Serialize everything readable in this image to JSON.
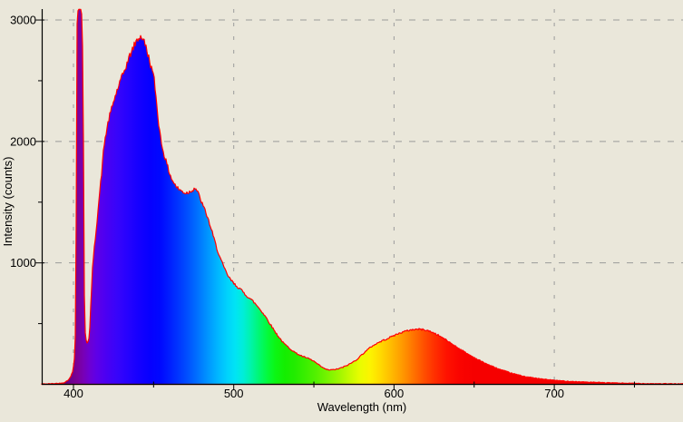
{
  "chart": {
    "bg_color": "#eae7da",
    "grid_color": "#9b9b9b",
    "axis_color": "#000000",
    "outline_color": "#ff0000"
  },
  "chart_data": {
    "type": "area",
    "xlabel": "Wavelength (nm)",
    "ylabel": "Intensity (counts)",
    "xlim": [
      380.2,
      780.3
    ],
    "ylim": [
      0,
      3090
    ],
    "grid": true,
    "x_major_ticks": [
      400,
      500,
      600,
      700
    ],
    "x_minor_ticks": [
      450,
      550,
      650,
      750
    ],
    "y_major_ticks": [
      1000,
      2000,
      3000
    ],
    "y_minor_ticks": [
      500,
      1500,
      2500
    ],
    "features": {
      "laser_line_nm": 404,
      "laser_line_counts": 3090,
      "main_peak_nm": 442,
      "main_peak_counts": 2870,
      "shoulder_nm": 476,
      "shoulder_counts": 1620,
      "valley_nm": 560,
      "valley_counts": 118,
      "secondary_peak_nm": 615,
      "secondary_peak_counts": 455
    },
    "points": [
      [
        380,
        3
      ],
      [
        384,
        4
      ],
      [
        388,
        6
      ],
      [
        392,
        9
      ],
      [
        394,
        14
      ],
      [
        396,
        28
      ],
      [
        398,
        55
      ],
      [
        399.5,
        105
      ],
      [
        400.5,
        190
      ],
      [
        401.2,
        420
      ],
      [
        401.8,
        1500
      ],
      [
        402.3,
        3060
      ],
      [
        403,
        3085
      ],
      [
        404,
        3090
      ],
      [
        405,
        3088
      ],
      [
        405.6,
        2840
      ],
      [
        406.1,
        2400
      ],
      [
        406.5,
        1100
      ],
      [
        407,
        500
      ],
      [
        407.6,
        380
      ],
      [
        408.5,
        345
      ],
      [
        409.5,
        355
      ],
      [
        410.3,
        480
      ],
      [
        411,
        720
      ],
      [
        412,
        980
      ],
      [
        413,
        1120
      ],
      [
        414.5,
        1320
      ],
      [
        416,
        1530
      ],
      [
        417.5,
        1730
      ],
      [
        419,
        1960
      ],
      [
        420.5,
        2080
      ],
      [
        422,
        2180
      ],
      [
        424,
        2280
      ],
      [
        426,
        2370
      ],
      [
        428,
        2450
      ],
      [
        430,
        2520
      ],
      [
        432.5,
        2610
      ],
      [
        435,
        2700
      ],
      [
        437.5,
        2780
      ],
      [
        439.5,
        2830
      ],
      [
        441.5,
        2865
      ],
      [
        443,
        2855
      ],
      [
        445,
        2790
      ],
      [
        447,
        2690
      ],
      [
        449,
        2590
      ],
      [
        450.5,
        2500
      ],
      [
        452,
        2300
      ],
      [
        453.5,
        2110
      ],
      [
        455,
        1980
      ],
      [
        457,
        1870
      ],
      [
        459,
        1780
      ],
      [
        461,
        1700
      ],
      [
        463,
        1650
      ],
      [
        465,
        1615
      ],
      [
        467.5,
        1590
      ],
      [
        470,
        1575
      ],
      [
        472.5,
        1585
      ],
      [
        474.5,
        1605
      ],
      [
        476,
        1620
      ],
      [
        477.5,
        1585
      ],
      [
        479,
        1530
      ],
      [
        481,
        1465
      ],
      [
        483,
        1400
      ],
      [
        485,
        1320
      ],
      [
        487,
        1230
      ],
      [
        489,
        1140
      ],
      [
        491,
        1060
      ],
      [
        493,
        990
      ],
      [
        495,
        930
      ],
      [
        497,
        880
      ],
      [
        500,
        830
      ],
      [
        504,
        785
      ],
      [
        508,
        730
      ],
      [
        512,
        685
      ],
      [
        516,
        625
      ],
      [
        520,
        555
      ],
      [
        524,
        470
      ],
      [
        527,
        410
      ],
      [
        531,
        340
      ],
      [
        535,
        295
      ],
      [
        539,
        255
      ],
      [
        543,
        230
      ],
      [
        547,
        210
      ],
      [
        550,
        190
      ],
      [
        553,
        160
      ],
      [
        556,
        133
      ],
      [
        558,
        122
      ],
      [
        560,
        118
      ],
      [
        562,
        120
      ],
      [
        565,
        127
      ],
      [
        568,
        140
      ],
      [
        571,
        158
      ],
      [
        574,
        180
      ],
      [
        577,
        207
      ],
      [
        580,
        245
      ],
      [
        583,
        280
      ],
      [
        586,
        312
      ],
      [
        589,
        335
      ],
      [
        592,
        355
      ],
      [
        595,
        372
      ],
      [
        598,
        390
      ],
      [
        601,
        408
      ],
      [
        604,
        424
      ],
      [
        607,
        437
      ],
      [
        610,
        447
      ],
      [
        613,
        453
      ],
      [
        616,
        454
      ],
      [
        619,
        449
      ],
      [
        622,
        438
      ],
      [
        625,
        422
      ],
      [
        628,
        402
      ],
      [
        631,
        378
      ],
      [
        634,
        352
      ],
      [
        637,
        326
      ],
      [
        640,
        300
      ],
      [
        643,
        275
      ],
      [
        646,
        250
      ],
      [
        649,
        228
      ],
      [
        652,
        206
      ],
      [
        655,
        186
      ],
      [
        658,
        167
      ],
      [
        661,
        149
      ],
      [
        664,
        133
      ],
      [
        667,
        118
      ],
      [
        670,
        105
      ],
      [
        673,
        93
      ],
      [
        676,
        82
      ],
      [
        679,
        72
      ],
      [
        682,
        64
      ],
      [
        686,
        55
      ],
      [
        690,
        47
      ],
      [
        694,
        41
      ],
      [
        698,
        36
      ],
      [
        702,
        31
      ],
      [
        707,
        26
      ],
      [
        712,
        23
      ],
      [
        717,
        20
      ],
      [
        723,
        17
      ],
      [
        729,
        14
      ],
      [
        735,
        12
      ],
      [
        741,
        10
      ],
      [
        747,
        8
      ],
      [
        753,
        7
      ],
      [
        759,
        6
      ],
      [
        766,
        5
      ],
      [
        773,
        4
      ],
      [
        780,
        4
      ]
    ],
    "spectrum_gradient": [
      [
        380,
        "#2e003e"
      ],
      [
        390,
        "#500064"
      ],
      [
        397,
        "#68008a"
      ],
      [
        402,
        "#7a0096"
      ],
      [
        406,
        "#7800b4"
      ],
      [
        410,
        "#6e00d2"
      ],
      [
        414,
        "#6000e6"
      ],
      [
        420,
        "#4c00f2"
      ],
      [
        427,
        "#3804fa"
      ],
      [
        434,
        "#2602fe"
      ],
      [
        441,
        "#1400ff"
      ],
      [
        448,
        "#0600ff"
      ],
      [
        454,
        "#0008ff"
      ],
      [
        460,
        "#001eff"
      ],
      [
        466,
        "#0038ff"
      ],
      [
        472,
        "#0054ff"
      ],
      [
        478,
        "#0074ff"
      ],
      [
        484,
        "#0096ff"
      ],
      [
        490,
        "#00b6ff"
      ],
      [
        496,
        "#00d2fc"
      ],
      [
        501,
        "#00e4f4"
      ],
      [
        506,
        "#00eed8"
      ],
      [
        511,
        "#00f4a6"
      ],
      [
        516,
        "#00f870"
      ],
      [
        521,
        "#04fa3c"
      ],
      [
        526,
        "#0cf614"
      ],
      [
        532,
        "#14ee00"
      ],
      [
        538,
        "#22ec00"
      ],
      [
        544,
        "#38ee00"
      ],
      [
        551,
        "#52f000"
      ],
      [
        558,
        "#74f400"
      ],
      [
        565,
        "#9af600"
      ],
      [
        572,
        "#c4fa00"
      ],
      [
        579,
        "#eafc00"
      ],
      [
        585,
        "#fcf400"
      ],
      [
        591,
        "#ffdc00"
      ],
      [
        598,
        "#ffbc00"
      ],
      [
        605,
        "#ff9a00"
      ],
      [
        612,
        "#ff7400"
      ],
      [
        619,
        "#ff4e00"
      ],
      [
        626,
        "#ff2c00"
      ],
      [
        633,
        "#fe1200"
      ],
      [
        641,
        "#fa0400"
      ],
      [
        650,
        "#f60000"
      ],
      [
        700,
        "#f40000"
      ],
      [
        780,
        "#f20000"
      ]
    ]
  }
}
